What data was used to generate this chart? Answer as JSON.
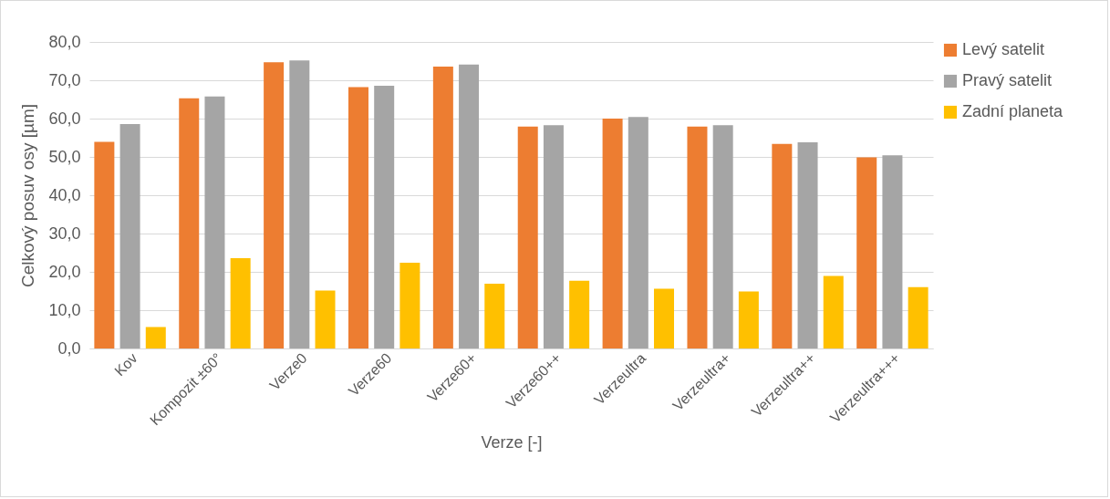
{
  "chart_data": {
    "type": "bar",
    "xlabel": "Verze [-]",
    "ylabel": "Celkový posuv osy [µm]",
    "categories": [
      "Kov",
      "Kompozit ±60°",
      "Verze0",
      "Verze60",
      "Verze60+",
      "Verze60++",
      "Verzeultra",
      "Verzeultra+",
      "Verzeultra++",
      "Verzeultra+++"
    ],
    "series": [
      {
        "name": "Levý satelit",
        "color": "#ed7d31",
        "values": [
          53.9,
          65.3,
          74.7,
          68.2,
          73.6,
          57.9,
          60.0,
          57.9,
          53.4,
          49.9
        ]
      },
      {
        "name": "Pravý satelit",
        "color": "#a5a5a5",
        "values": [
          58.6,
          65.8,
          75.2,
          68.6,
          74.1,
          58.3,
          60.4,
          58.3,
          53.8,
          50.4
        ]
      },
      {
        "name": "Zadní planeta",
        "color": "#ffc000",
        "values": [
          5.6,
          23.6,
          15.1,
          22.4,
          16.9,
          17.7,
          15.6,
          14.9,
          18.9,
          16.0
        ]
      }
    ],
    "ylim": [
      0,
      80
    ],
    "yticks": [
      {
        "value": 0,
        "label": "0,0"
      },
      {
        "value": 10,
        "label": "10,0"
      },
      {
        "value": 20,
        "label": "20,0"
      },
      {
        "value": 30,
        "label": "30,0"
      },
      {
        "value": 40,
        "label": "40,0"
      },
      {
        "value": 50,
        "label": "50,0"
      },
      {
        "value": 60,
        "label": "60,0"
      },
      {
        "value": 70,
        "label": "70,0"
      },
      {
        "value": 80,
        "label": "80,0"
      }
    ],
    "grid": "y",
    "legend": "right"
  }
}
